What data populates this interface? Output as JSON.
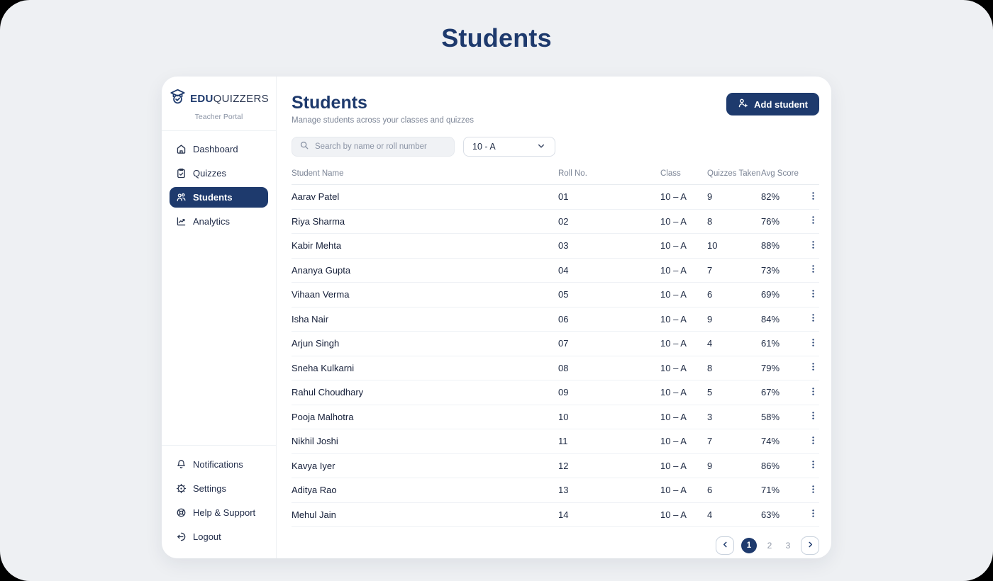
{
  "page": {
    "title": "Students"
  },
  "brand": {
    "name_bold": "EDU",
    "name_rest": "QUIZZERS",
    "subtitle": "Teacher Portal"
  },
  "sidebar": {
    "nav": [
      {
        "label": "Dashboard",
        "icon": "home-icon",
        "active": false
      },
      {
        "label": "Quizzes",
        "icon": "clipboard-icon",
        "active": false
      },
      {
        "label": "Students",
        "icon": "users-icon",
        "active": true
      },
      {
        "label": "Analytics",
        "icon": "chart-icon",
        "active": false
      }
    ],
    "footer_nav": [
      {
        "label": "Notifications",
        "icon": "bell-icon"
      },
      {
        "label": "Settings",
        "icon": "gear-icon"
      },
      {
        "label": "Help & Support",
        "icon": "life-ring-icon"
      },
      {
        "label": "Logout",
        "icon": "logout-icon"
      }
    ]
  },
  "header": {
    "title": "Students",
    "subtitle": "Manage students across your classes and quizzes",
    "add_button": "Add student"
  },
  "controls": {
    "search_placeholder": "Search by name or roll number",
    "class_filter": "10 - A"
  },
  "table": {
    "columns": [
      "Student Name",
      "Roll No.",
      "Class",
      "Quizzes Taken",
      "Avg Score"
    ],
    "rows": [
      {
        "name": "Aarav Patel",
        "roll": "01",
        "class": "10 – A",
        "quizzes": "9",
        "avg": "82%"
      },
      {
        "name": "Riya Sharma",
        "roll": "02",
        "class": "10 – A",
        "quizzes": "8",
        "avg": "76%"
      },
      {
        "name": "Kabir Mehta",
        "roll": "03",
        "class": "10 – A",
        "quizzes": "10",
        "avg": "88%"
      },
      {
        "name": "Ananya Gupta",
        "roll": "04",
        "class": "10 – A",
        "quizzes": "7",
        "avg": "73%"
      },
      {
        "name": "Vihaan Verma",
        "roll": "05",
        "class": "10 – A",
        "quizzes": "6",
        "avg": "69%"
      },
      {
        "name": "Isha Nair",
        "roll": "06",
        "class": "10 – A",
        "quizzes": "9",
        "avg": "84%"
      },
      {
        "name": "Arjun Singh",
        "roll": "07",
        "class": "10 – A",
        "quizzes": "4",
        "avg": "61%"
      },
      {
        "name": "Sneha Kulkarni",
        "roll": "08",
        "class": "10 – A",
        "quizzes": "8",
        "avg": "79%"
      },
      {
        "name": "Rahul Choudhary",
        "roll": "09",
        "class": "10 – A",
        "quizzes": "5",
        "avg": "67%"
      },
      {
        "name": "Pooja Malhotra",
        "roll": "10",
        "class": "10 – A",
        "quizzes": "3",
        "avg": "58%"
      },
      {
        "name": "Nikhil Joshi",
        "roll": "11",
        "class": "10 – A",
        "quizzes": "7",
        "avg": "74%"
      },
      {
        "name": "Kavya Iyer",
        "roll": "12",
        "class": "10 – A",
        "quizzes": "9",
        "avg": "86%"
      },
      {
        "name": "Aditya Rao",
        "roll": "13",
        "class": "10 – A",
        "quizzes": "6",
        "avg": "71%"
      },
      {
        "name": "Mehul Jain",
        "roll": "14",
        "class": "10 – A",
        "quizzes": "4",
        "avg": "63%"
      }
    ]
  },
  "pagination": {
    "pages": [
      "1",
      "2",
      "3"
    ],
    "active": "1"
  },
  "colors": {
    "navy": "#1e3a6d",
    "page_bg": "#eef0f3",
    "row_border": "#eef1f5"
  }
}
